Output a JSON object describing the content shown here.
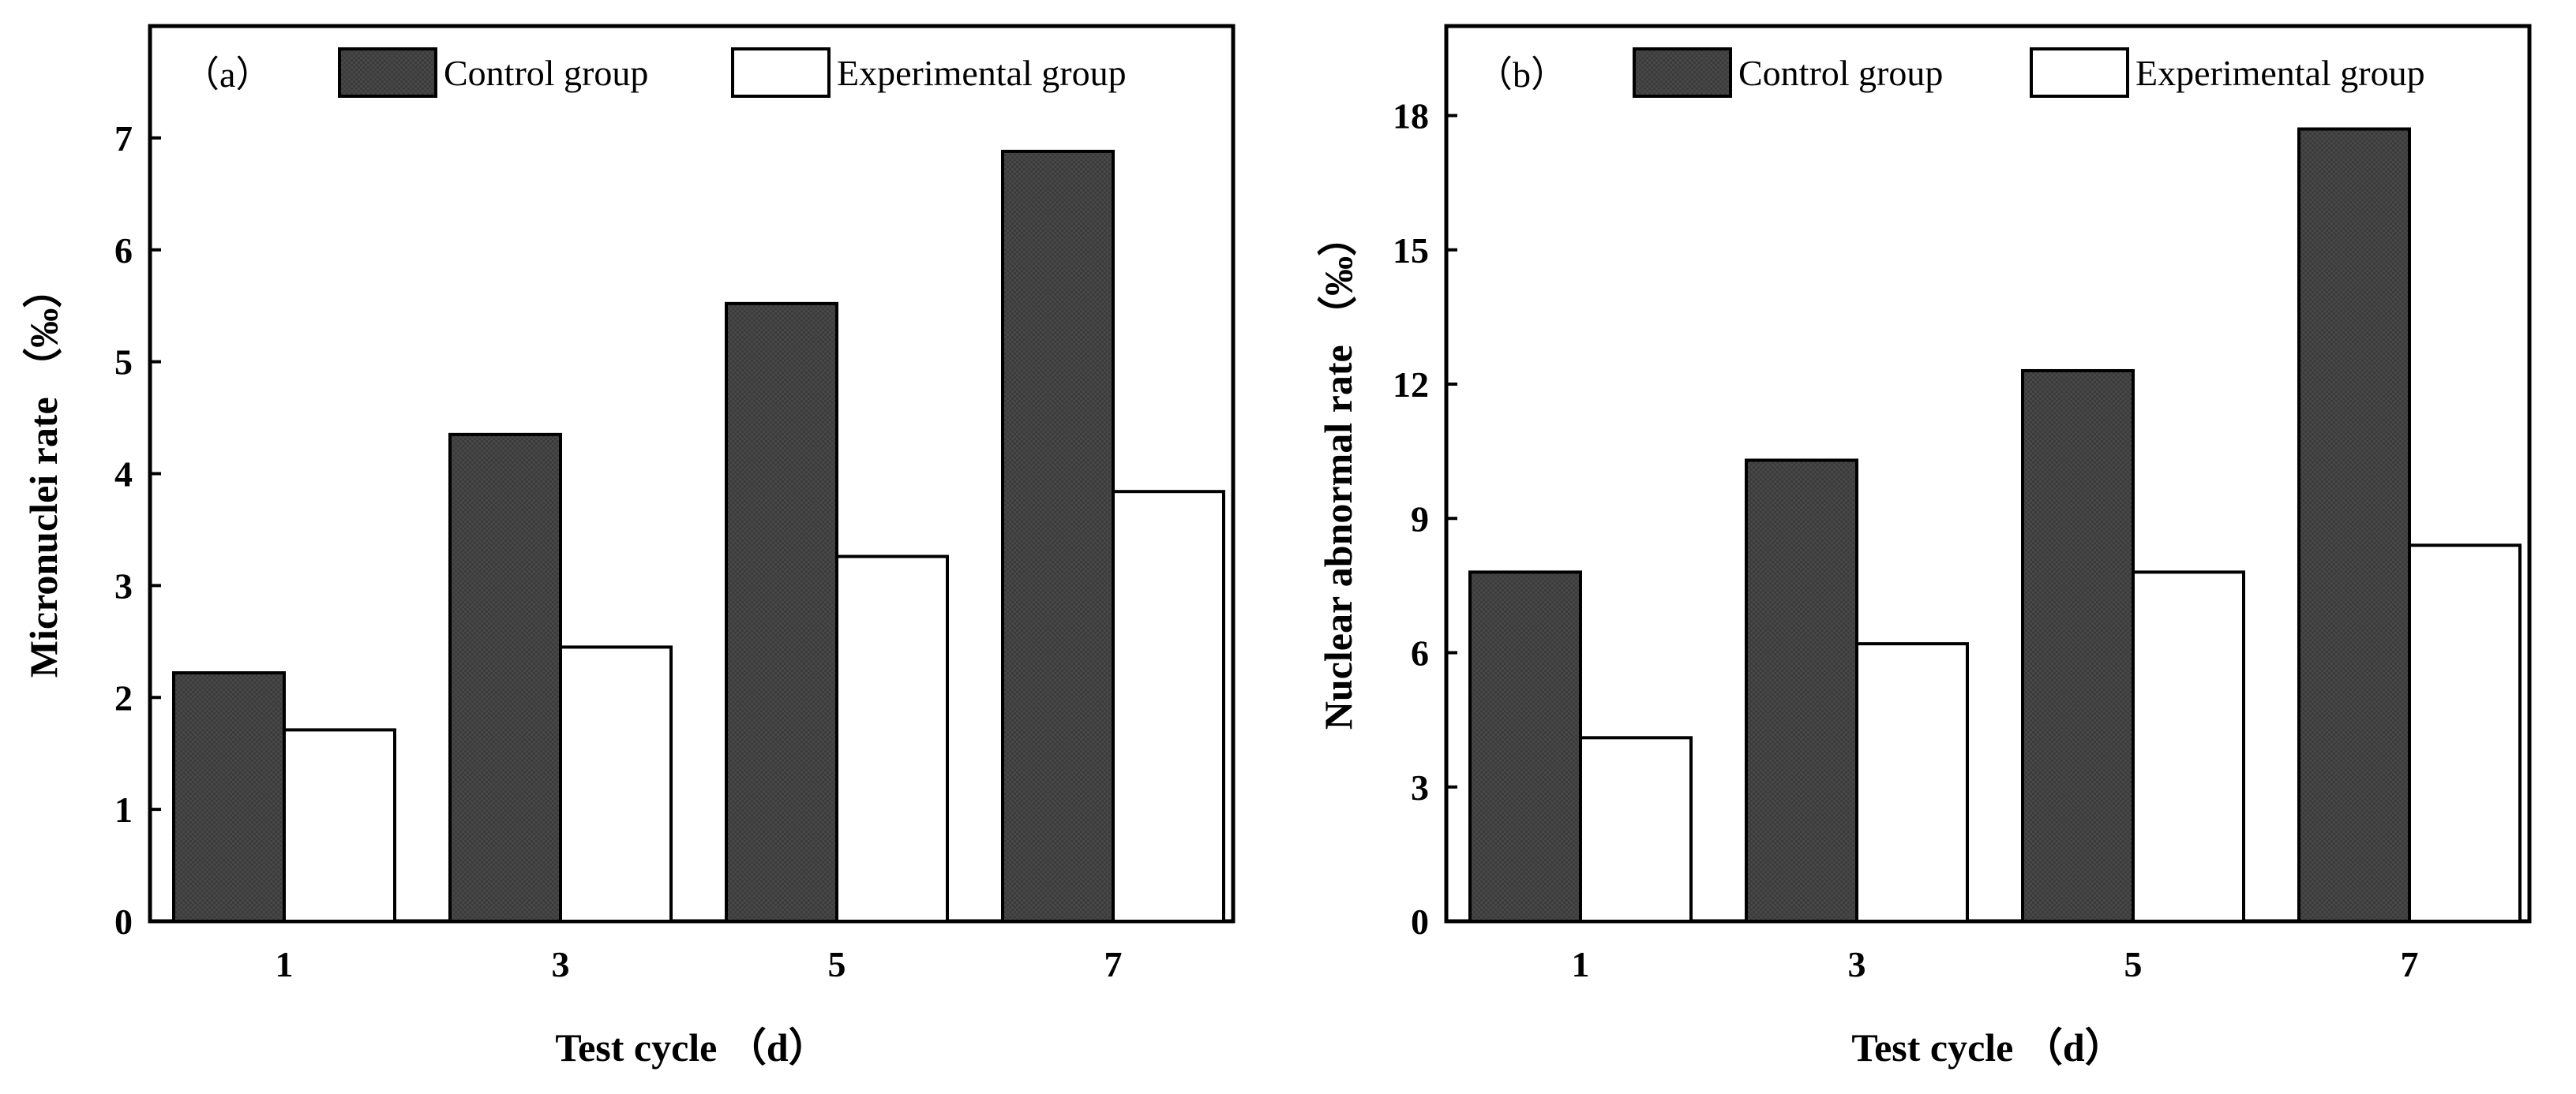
{
  "colors": {
    "control_fill": "#3c3c3c",
    "experimental_fill": "#ffffff",
    "stroke": "#000000"
  },
  "chart_data": [
    {
      "type": "bar",
      "panel_label": "（a）",
      "categories": [
        "1",
        "3",
        "5",
        "7"
      ],
      "series": [
        {
          "name": "Control group",
          "values": [
            2.22,
            4.35,
            5.52,
            6.88
          ]
        },
        {
          "name": "Experimental group",
          "values": [
            1.71,
            2.45,
            3.26,
            3.84
          ]
        }
      ],
      "xlabel": "Test cycle （d）",
      "ylabel": "Micronuclei rate （‰）",
      "ylim": [
        0,
        8
      ],
      "yticks": [
        0,
        1,
        2,
        3,
        4,
        5,
        6,
        7
      ],
      "legend": "top-right"
    },
    {
      "type": "bar",
      "panel_label": "（b）",
      "categories": [
        "1",
        "3",
        "5",
        "7"
      ],
      "series": [
        {
          "name": "Control group",
          "values": [
            7.8,
            10.3,
            12.3,
            17.7
          ]
        },
        {
          "name": "Experimental group",
          "values": [
            4.1,
            6.2,
            7.8,
            8.4
          ]
        }
      ],
      "xlabel": "Test cycle （d）",
      "ylabel": "Nuclear abnormal rate （‰）",
      "ylim": [
        0,
        20
      ],
      "yticks": [
        0,
        3,
        6,
        9,
        12,
        15,
        18
      ],
      "legend": "top-right"
    }
  ]
}
